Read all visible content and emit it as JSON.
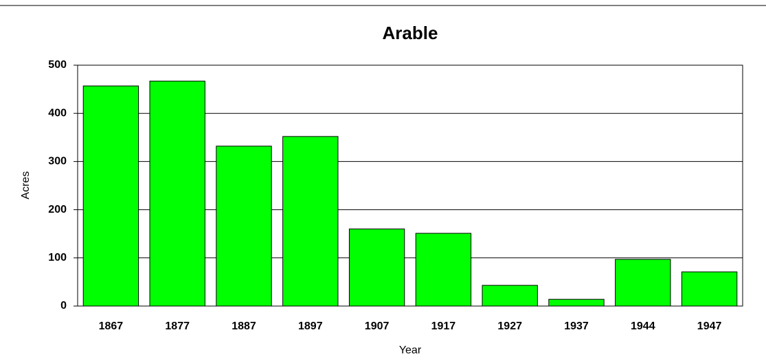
{
  "chart_data": {
    "type": "bar",
    "title": "Arable",
    "x_label": "Year",
    "y_label": "Acres",
    "categories": [
      "1867",
      "1877",
      "1887",
      "1897",
      "1907",
      "1917",
      "1927",
      "1937",
      "1944",
      "1947"
    ],
    "values": [
      457,
      467,
      332,
      352,
      160,
      151,
      43,
      14,
      97,
      71
    ],
    "color": "#00ff00",
    "ylim": [
      0,
      500
    ],
    "yticks": [
      0,
      100,
      200,
      300,
      400,
      500
    ],
    "grid": true
  }
}
